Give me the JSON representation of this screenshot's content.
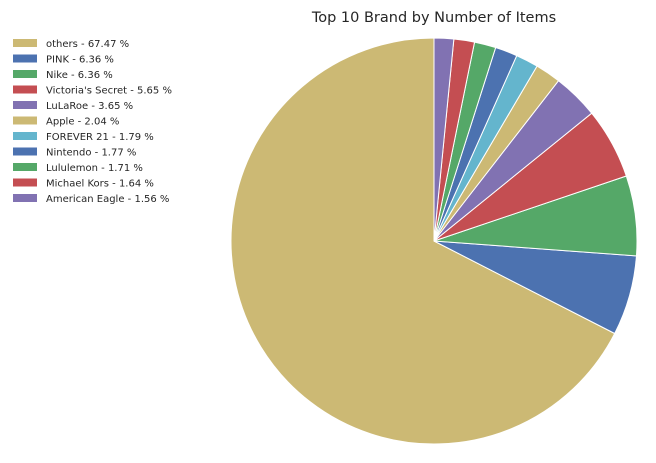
{
  "chart_data": {
    "type": "pie",
    "title": "Top 10 Brand by Number of Items",
    "legend_position": "top-left",
    "start_angle_deg": 90,
    "direction": "counterclockwise",
    "slices": [
      {
        "label": "others - 67.47 %",
        "value": 67.47,
        "color": "#ccb974"
      },
      {
        "label": "PINK - 6.36 %",
        "value": 6.36,
        "color": "#4c72b0"
      },
      {
        "label": "Nike - 6.36 %",
        "value": 6.36,
        "color": "#55a868"
      },
      {
        "label": "Victoria's Secret - 5.65 %",
        "value": 5.65,
        "color": "#c44e52"
      },
      {
        "label": "LuLaRoe - 3.65 %",
        "value": 3.65,
        "color": "#8172b2"
      },
      {
        "label": "Apple - 2.04 %",
        "value": 2.04,
        "color": "#ccb974"
      },
      {
        "label": "FOREVER 21 - 1.79 %",
        "value": 1.79,
        "color": "#64b5cd"
      },
      {
        "label": "Nintendo - 1.77 %",
        "value": 1.77,
        "color": "#4c72b0"
      },
      {
        "label": "Lululemon - 1.71 %",
        "value": 1.71,
        "color": "#55a868"
      },
      {
        "label": "Michael Kors - 1.64 %",
        "value": 1.64,
        "color": "#c44e52"
      },
      {
        "label": "American Eagle - 1.56 %",
        "value": 1.56,
        "color": "#8172b2"
      }
    ]
  }
}
